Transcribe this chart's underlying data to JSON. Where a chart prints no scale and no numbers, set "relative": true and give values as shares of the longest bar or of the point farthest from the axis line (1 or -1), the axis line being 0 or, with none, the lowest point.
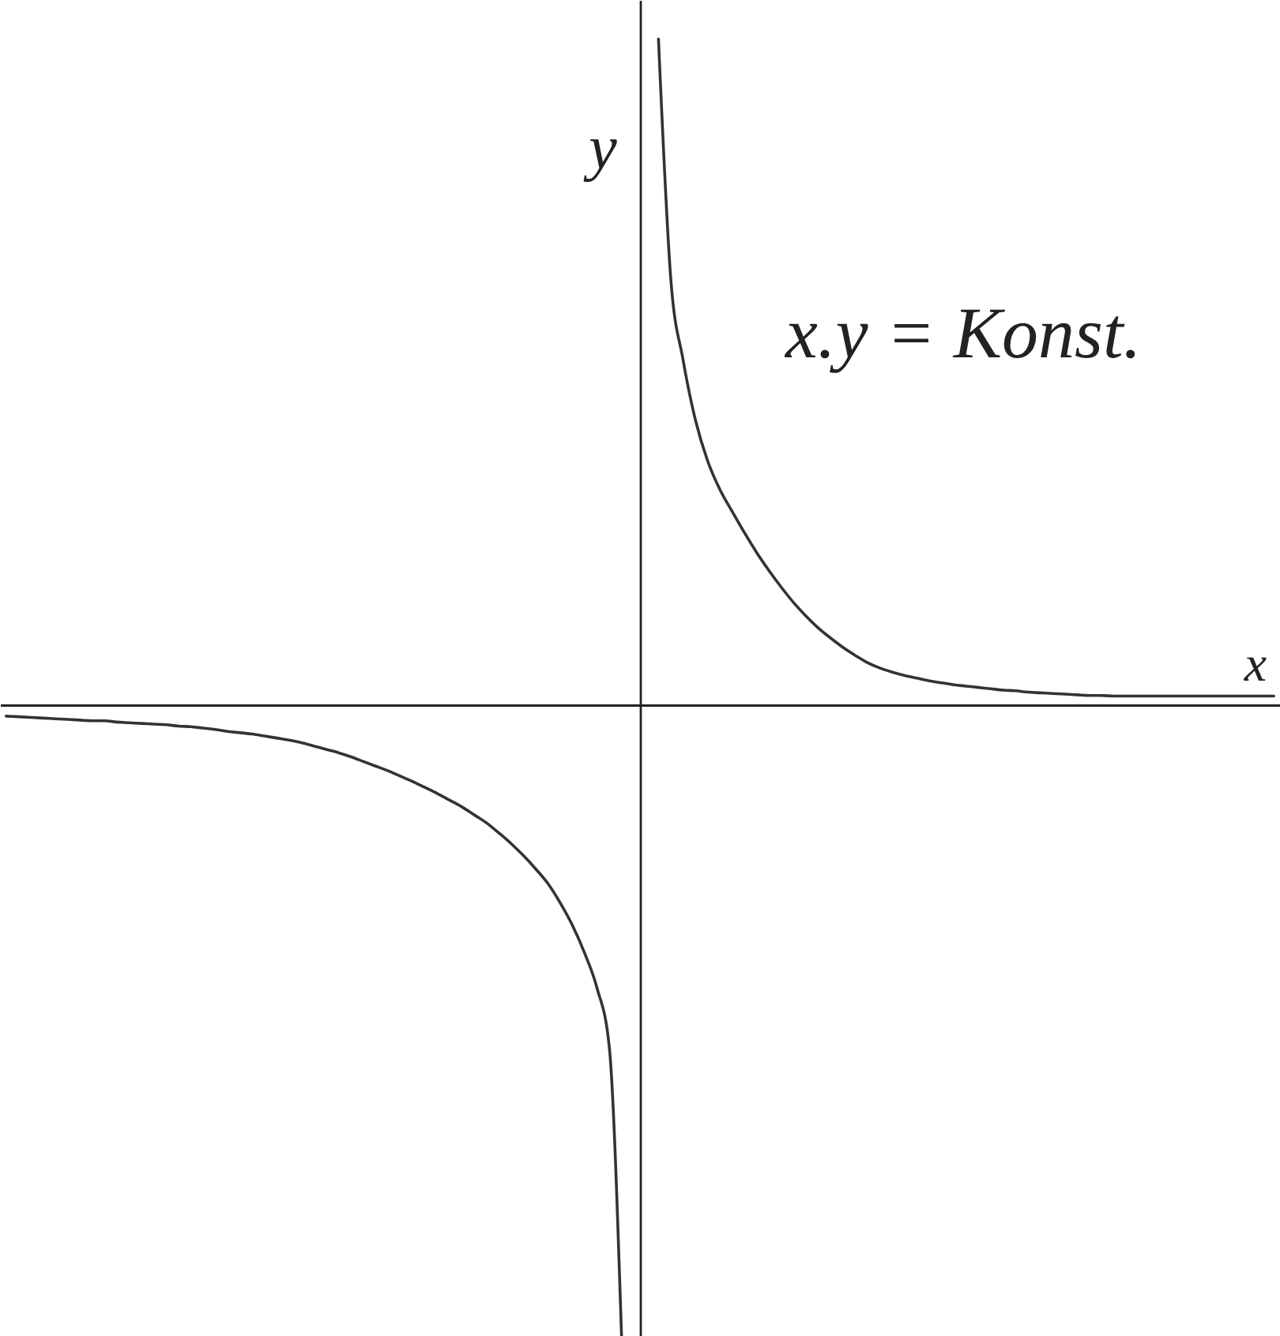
{
  "chart_data": {
    "type": "line",
    "relative": true,
    "tick_labels": false,
    "line_style": "solid",
    "xlabel": "x",
    "ylabel": "y",
    "annotations": [
      "x.y = Konst."
    ],
    "categories": [
      null,
      null,
      null,
      null,
      null,
      null,
      null,
      null,
      null,
      null,
      null,
      null,
      null,
      null,
      null,
      null,
      null,
      null,
      null,
      null,
      null,
      null,
      null,
      null,
      null,
      null,
      null,
      null,
      null,
      null,
      null,
      null,
      null,
      null,
      null,
      null,
      null,
      null,
      null,
      null,
      null,
      null,
      null,
      null,
      null,
      null,
      null,
      null,
      null,
      null,
      null,
      null,
      null,
      null,
      null,
      null,
      null,
      null,
      null,
      null,
      null,
      null,
      null,
      null,
      null,
      null,
      null,
      null,
      null,
      null,
      null,
      null,
      null,
      null,
      null,
      null,
      null,
      null,
      null,
      null,
      null,
      null,
      null,
      null,
      null,
      null,
      null,
      null,
      null,
      null,
      null,
      null,
      null,
      null,
      null,
      null,
      null,
      null,
      null,
      null,
      null,
      null,
      null,
      null
    ],
    "series": [
      {
        "color": "#333333",
        "values": [
          -0.017,
          -0.018,
          -0.019,
          -0.02,
          -0.021,
          -0.022,
          -0.023,
          -0.024,
          -0.024,
          -0.026,
          -0.027,
          -0.028,
          -0.029,
          -0.03,
          -0.032,
          -0.033,
          -0.035,
          -0.037,
          -0.04,
          -0.042,
          -0.044,
          -0.047,
          -0.05,
          -0.053,
          -0.057,
          -0.062,
          -0.067,
          -0.072,
          -0.078,
          -0.085,
          -0.092,
          -0.099,
          -0.107,
          -0.115,
          -0.124,
          -0.133,
          -0.143,
          -0.153,
          -0.165,
          -0.177,
          -0.192,
          -0.208,
          -0.226,
          -0.246,
          -0.268,
          -0.297,
          -0.331,
          -0.373,
          -0.425,
          -0.513,
          -0.948,
          null,
          null,
          null,
          null,
          null,
          null,
          null,
          null,
          null,
          null,
          null,
          null,
          null,
          null,
          null,
          null,
          null,
          null,
          null,
          null,
          null,
          null,
          null,
          null,
          null,
          null,
          null,
          null,
          null,
          null,
          null,
          null,
          null,
          null,
          null,
          null,
          null,
          null,
          null,
          null,
          null,
          null,
          null,
          null,
          null,
          null,
          null,
          null,
          null,
          null,
          null,
          null,
          null
        ]
      },
      {
        "color": "#333333",
        "values": [
          null,
          null,
          null,
          null,
          null,
          null,
          null,
          null,
          null,
          null,
          null,
          null,
          null,
          null,
          null,
          null,
          null,
          null,
          null,
          null,
          null,
          null,
          null,
          null,
          null,
          null,
          null,
          null,
          null,
          null,
          null,
          null,
          null,
          null,
          null,
          null,
          null,
          null,
          null,
          null,
          null,
          null,
          null,
          null,
          null,
          null,
          null,
          null,
          null,
          null,
          null,
          null,
          null,
          1.0,
          0.64,
          0.518,
          0.428,
          0.366,
          0.323,
          0.29,
          0.258,
          0.228,
          0.201,
          0.176,
          0.153,
          0.133,
          0.115,
          0.1,
          0.086,
          0.074,
          0.063,
          0.055,
          0.049,
          0.044,
          0.04,
          0.036,
          0.033,
          0.03,
          0.028,
          0.026,
          0.024,
          0.022,
          0.021,
          0.019,
          0.018,
          0.017,
          0.016,
          0.015,
          0.014,
          0.014,
          0.013,
          0.013,
          0.013,
          0.013,
          0.013,
          0.013,
          0.013,
          0.013,
          0.013,
          0.013,
          0.013,
          0.013,
          0.013,
          0.013
        ]
      }
    ]
  }
}
